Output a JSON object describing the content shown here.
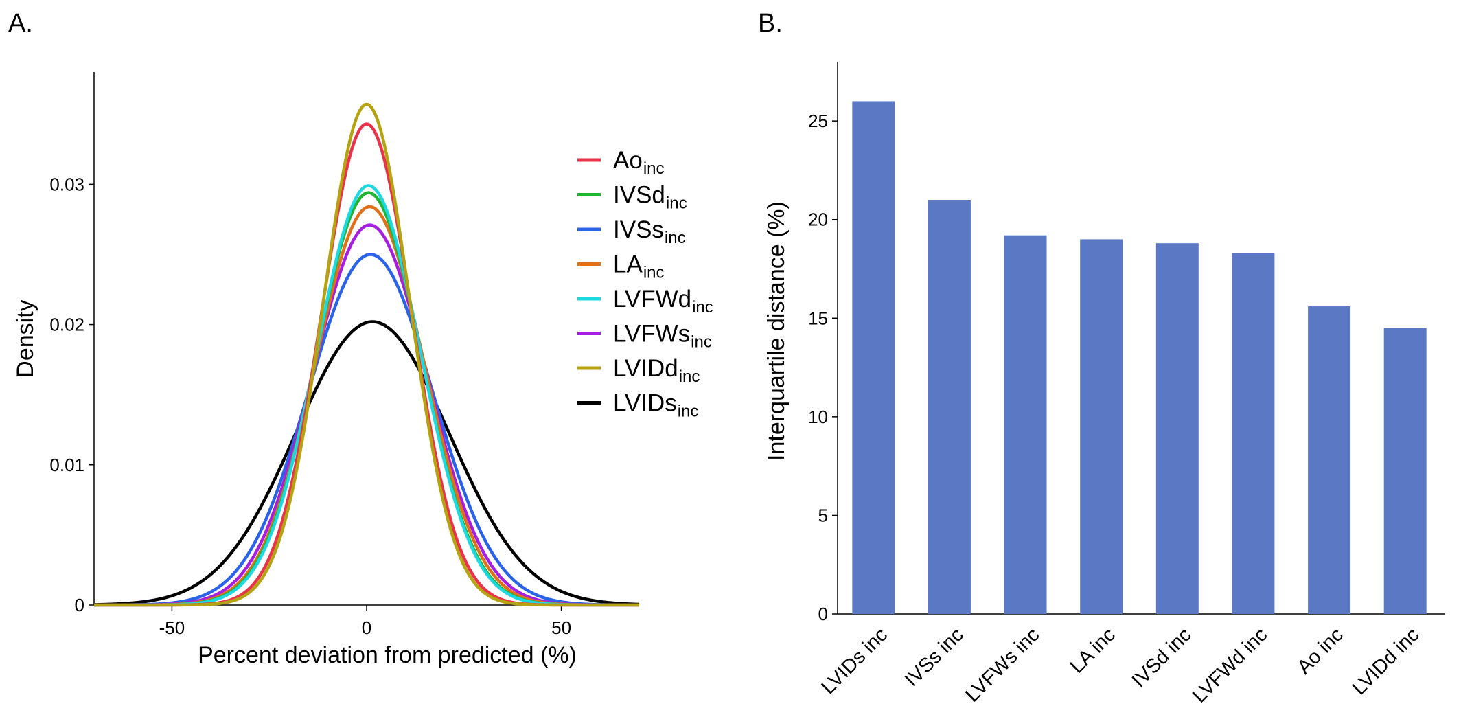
{
  "panels": {
    "a_label": "A.",
    "b_label": "B."
  },
  "chart_data": [
    {
      "type": "line",
      "xlabel": "Percent deviation from predicted (%)",
      "ylabel": "Density",
      "xlim": [
        -70,
        70
      ],
      "ylim": [
        0,
        0.038
      ],
      "xticks": [
        -50,
        0,
        50
      ],
      "xtick_labels": [
        "-50",
        "0",
        "50"
      ],
      "yticks": [
        0,
        0.01,
        0.02,
        0.03
      ],
      "ytick_labels": [
        "0",
        "0.01",
        "0.02",
        "0.03"
      ],
      "legend_position": "right",
      "series": [
        {
          "name": "Ao",
          "subscript": "inc",
          "color": "#e8334a",
          "mean": 0,
          "sd": 11.6,
          "peak": 0.0343
        },
        {
          "name": "IVSd",
          "subscript": "inc",
          "color": "#21b534",
          "mean": 0.5,
          "sd": 13.5,
          "peak": 0.0294
        },
        {
          "name": "IVSs",
          "subscript": "inc",
          "color": "#2b63e8",
          "mean": 1.0,
          "sd": 16.0,
          "peak": 0.025
        },
        {
          "name": "LA",
          "subscript": "inc",
          "color": "#e0701a",
          "mean": 0.8,
          "sd": 14.0,
          "peak": 0.0284
        },
        {
          "name": "LVFWd",
          "subscript": "inc",
          "color": "#1ed8e0",
          "mean": 0.5,
          "sd": 13.3,
          "peak": 0.0299
        },
        {
          "name": "LVFWs",
          "subscript": "inc",
          "color": "#a61ee0",
          "mean": 0.8,
          "sd": 14.7,
          "peak": 0.0271
        },
        {
          "name": "LVIDd",
          "subscript": "inc",
          "color": "#b5a312",
          "mean": 0,
          "sd": 11.1,
          "peak": 0.0357
        },
        {
          "name": "LVIDs",
          "subscript": "inc",
          "color": "#000000",
          "mean": 1.5,
          "sd": 19.7,
          "peak": 0.0202
        }
      ]
    },
    {
      "type": "bar",
      "ylabel": "Interquartile distance (%)",
      "ylim": [
        0,
        28
      ],
      "yticks": [
        0,
        5,
        10,
        15,
        20,
        25
      ],
      "ytick_labels": [
        "0",
        "5",
        "10",
        "15",
        "20",
        "25"
      ],
      "bar_color": "#5a78c4",
      "categories": [
        "LVIDs inc",
        "IVSs inc",
        "LVFWs inc",
        "LA inc",
        "IVSd inc",
        "LVFWd inc",
        "Ao inc",
        "LVIDd inc"
      ],
      "values": [
        26.0,
        21.0,
        19.2,
        19.0,
        18.8,
        18.3,
        15.6,
        14.5
      ]
    }
  ]
}
